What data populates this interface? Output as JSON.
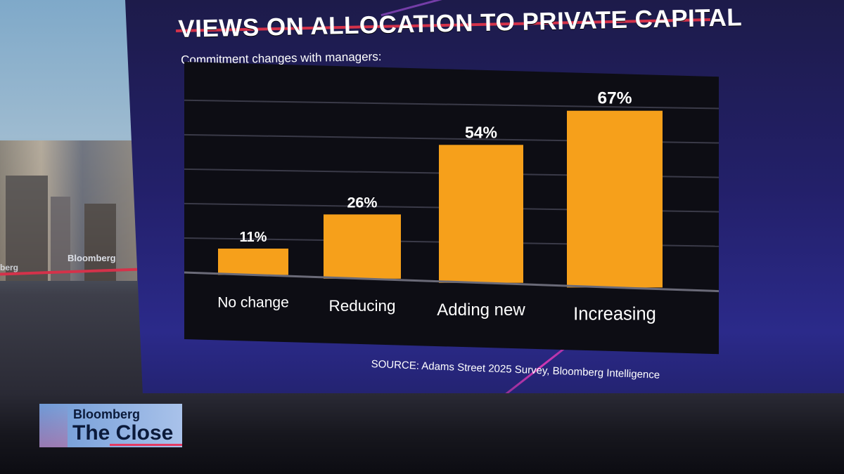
{
  "broadcast": {
    "background_wall_label": "Bloomberg",
    "background_wall_label_partial": "berg",
    "show_logo": {
      "network": "Bloomberg",
      "show": "The Close"
    }
  },
  "colors": {
    "bar": "#f6a01b",
    "panel": "#0d0d14",
    "accent_red": "#d4324a",
    "text": "#ffffff"
  },
  "chart_data": {
    "type": "bar",
    "title": "VIEWS ON ALLOCATION TO PRIVATE CAPITAL",
    "subtitle": "Commitment changes with managers:",
    "categories": [
      "No change",
      "Reducing",
      "Adding new",
      "Increasing"
    ],
    "values": [
      11,
      26,
      54,
      67
    ],
    "data_labels": [
      "11%",
      "26%",
      "54%",
      "67%"
    ],
    "ylim": [
      0,
      75
    ],
    "grid": true,
    "source": "SOURCE: Adams Street 2025 Survey, Bloomberg Intelligence"
  }
}
